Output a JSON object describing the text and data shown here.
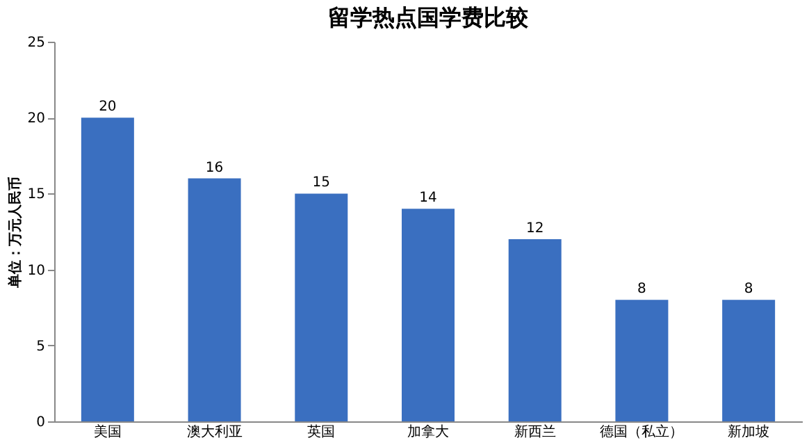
{
  "chart_data": {
    "type": "bar",
    "title": "留学热点国学费比较",
    "ylabel": "单位：万元人民币",
    "categories": [
      "美国",
      "澳大利亚",
      "英国",
      "加拿大",
      "新西兰",
      "德国（私立）",
      "新加坡"
    ],
    "values": [
      20,
      16,
      15,
      14,
      12,
      8,
      8
    ],
    "color": "#3a6fc0",
    "ylim": [
      0,
      25
    ],
    "yticks": [
      0,
      5,
      10,
      15,
      20,
      25
    ],
    "grid": false,
    "data_labels": true
  }
}
